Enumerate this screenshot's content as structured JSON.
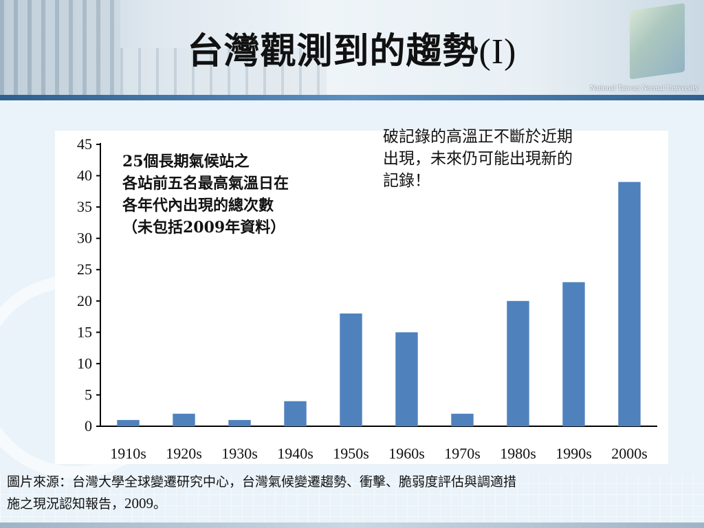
{
  "slide": {
    "title": "台灣觀測到的趨勢",
    "title_suffix": "(I)",
    "university_logo_text": "National Taiwan Normal University"
  },
  "inset_text": [
    "25個長期氣候站之",
    "各站前五名最高氣溫日在",
    "各年代內出現的總次數",
    "（未包括2009年資料）"
  ],
  "note_text": [
    "破記錄的高溫正不斷於近期",
    "出現，未來仍可能出現新的",
    "記錄！"
  ],
  "source_text": {
    "line1": "圖片來源：台灣大學全球變遷研究中心，台灣氣候變遷趨勢、衝擊、脆弱度評估與調適措",
    "line2_prefix": "施之現況認知報告，",
    "line2_year": "2009",
    "line2_suffix": "。"
  },
  "colors": {
    "bar": "#4f81bd",
    "axis": "#000000",
    "header_bar": "#2e5f8f"
  },
  "chart_data": {
    "type": "bar",
    "categories": [
      "1910s",
      "1920s",
      "1930s",
      "1940s",
      "1950s",
      "1960s",
      "1970s",
      "1980s",
      "1990s",
      "2000s"
    ],
    "values": [
      1,
      2,
      1,
      4,
      18,
      15,
      2,
      20,
      23,
      39
    ],
    "yticks": [
      0,
      5,
      10,
      15,
      20,
      25,
      30,
      35,
      40,
      45
    ],
    "ylim": [
      0,
      45
    ],
    "title": "",
    "xlabel": "",
    "ylabel": "",
    "grid": false,
    "legend": "none"
  }
}
